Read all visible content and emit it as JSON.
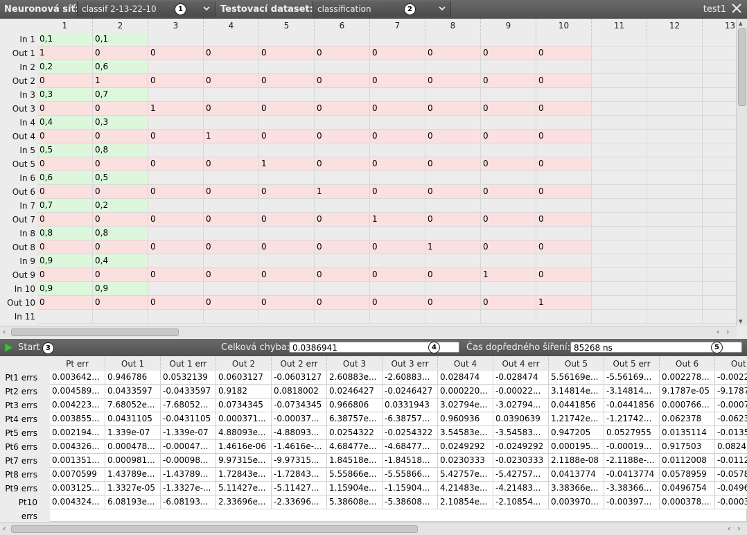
{
  "topbar": {
    "network_label": "Neuronová síť:",
    "network_value": "classif 2-13-22-10",
    "network_badge": "1",
    "dataset_label": "Testovací dataset:",
    "dataset_value": "classification",
    "dataset_badge": "2",
    "window_name": "test1"
  },
  "grid": {
    "columns": [
      "1",
      "2",
      "3",
      "4",
      "5",
      "6",
      "7",
      "8",
      "9",
      "10",
      "11",
      "12",
      "13"
    ],
    "rows": [
      {
        "label": "In 1",
        "type": "in",
        "cells": [
          "0,1",
          "0,1"
        ]
      },
      {
        "label": "Out 1",
        "type": "out",
        "cells": [
          "1",
          "0",
          "0",
          "0",
          "0",
          "0",
          "0",
          "0",
          "0",
          "0"
        ]
      },
      {
        "label": "In 2",
        "type": "in",
        "cells": [
          "0,2",
          "0,6"
        ]
      },
      {
        "label": "Out 2",
        "type": "out",
        "cells": [
          "0",
          "1",
          "0",
          "0",
          "0",
          "0",
          "0",
          "0",
          "0",
          "0"
        ]
      },
      {
        "label": "In 3",
        "type": "in",
        "cells": [
          "0,3",
          "0,7"
        ]
      },
      {
        "label": "Out 3",
        "type": "out",
        "cells": [
          "0",
          "0",
          "1",
          "0",
          "0",
          "0",
          "0",
          "0",
          "0",
          "0"
        ]
      },
      {
        "label": "In 4",
        "type": "in",
        "cells": [
          "0,4",
          "0,3"
        ]
      },
      {
        "label": "Out 4",
        "type": "out",
        "cells": [
          "0",
          "0",
          "0",
          "1",
          "0",
          "0",
          "0",
          "0",
          "0",
          "0"
        ]
      },
      {
        "label": "In 5",
        "type": "in",
        "cells": [
          "0,5",
          "0,8"
        ]
      },
      {
        "label": "Out 5",
        "type": "out",
        "cells": [
          "0",
          "0",
          "0",
          "0",
          "1",
          "0",
          "0",
          "0",
          "0",
          "0"
        ]
      },
      {
        "label": "In 6",
        "type": "in",
        "cells": [
          "0,6",
          "0,5"
        ]
      },
      {
        "label": "Out 6",
        "type": "out",
        "cells": [
          "0",
          "0",
          "0",
          "0",
          "0",
          "1",
          "0",
          "0",
          "0",
          "0"
        ]
      },
      {
        "label": "In 7",
        "type": "in",
        "cells": [
          "0,7",
          "0,2"
        ]
      },
      {
        "label": "Out 7",
        "type": "out",
        "cells": [
          "0",
          "0",
          "0",
          "0",
          "0",
          "0",
          "1",
          "0",
          "0",
          "0"
        ]
      },
      {
        "label": "In 8",
        "type": "in",
        "cells": [
          "0,8",
          "0,8"
        ]
      },
      {
        "label": "Out 8",
        "type": "out",
        "cells": [
          "0",
          "0",
          "0",
          "0",
          "0",
          "0",
          "0",
          "1",
          "0",
          "0"
        ]
      },
      {
        "label": "In 9",
        "type": "in",
        "cells": [
          "0,9",
          "0,4"
        ]
      },
      {
        "label": "Out 9",
        "type": "out",
        "cells": [
          "0",
          "0",
          "0",
          "0",
          "0",
          "0",
          "0",
          "0",
          "1",
          "0"
        ]
      },
      {
        "label": "In 10",
        "type": "in",
        "cells": [
          "0,9",
          "0,9"
        ]
      },
      {
        "label": "Out 10",
        "type": "out",
        "cells": [
          "0",
          "0",
          "0",
          "0",
          "0",
          "0",
          "0",
          "0",
          "0",
          "1"
        ]
      },
      {
        "label": "In 11",
        "type": "empty",
        "cells": []
      }
    ]
  },
  "runbar": {
    "start_label": "Start",
    "start_badge": "3",
    "error_label": "Celková chyba:",
    "error_value": "0.0386941",
    "error_badge": "4",
    "time_label": "Čas dopředného šíření:",
    "time_value": "85268 ns",
    "time_badge": "5"
  },
  "errors": {
    "columns": [
      "Pt err",
      "Out 1",
      "Out 1 err",
      "Out 2",
      "Out 2 err",
      "Out 3",
      "Out 3 err",
      "Out 4",
      "Out 4 err",
      "Out 5",
      "Out 5 err",
      "Out 6",
      "Out 6"
    ],
    "rows": [
      {
        "label": "Pt1 errs",
        "cells": [
          "0.003642...",
          "0.946786",
          "0.0532139",
          "0.0603127",
          "-0.0603127",
          "2.60883e...",
          "-2.60883...",
          "0.028474",
          "-0.028474",
          "5.56169e...",
          "-5.56169...",
          "0.002278...",
          "-0.0022"
        ]
      },
      {
        "label": "Pt2 errs",
        "cells": [
          "0.004589...",
          "0.0433597",
          "-0.0433597",
          "0.9182",
          "0.0818002",
          "0.0246427",
          "-0.0246427",
          "0.000220...",
          "-0.00022...",
          "3.14814e...",
          "-3.14814...",
          "9.1787e-05",
          "-9.1787"
        ]
      },
      {
        "label": "Pt3 errs",
        "cells": [
          "0.004223...",
          "7.68052e...",
          "-7.68052...",
          "0.0734345",
          "-0.0734345",
          "0.966806",
          "0.0331943",
          "3.02794e...",
          "-3.02794...",
          "0.0441856",
          "-0.0441856",
          "0.000766...",
          "-0.0007"
        ]
      },
      {
        "label": "Pt4 errs",
        "cells": [
          "0.003855...",
          "0.0431105",
          "-0.0431105",
          "0.000371...",
          "-0.00037...",
          "6.38757e...",
          "-6.38757...",
          "0.960936",
          "0.0390639",
          "1.21742e...",
          "-1.21742...",
          "0.062378",
          "-0.0623"
        ]
      },
      {
        "label": "Pt5 errs",
        "cells": [
          "0.002194...",
          "1.339e-07",
          "-1.339e-07",
          "4.88093e...",
          "-4.88093...",
          "0.0254322",
          "-0.0254322",
          "3.54583e...",
          "-3.54583...",
          "0.947205",
          "0.0527955",
          "0.0135114",
          "-0.0135"
        ]
      },
      {
        "label": "Pt6 errs",
        "cells": [
          "0.004326...",
          "0.000478...",
          "-0.00047...",
          "1.4616e-06",
          "-1.4616e-...",
          "4.68477e...",
          "-4.68477...",
          "0.0249292",
          "-0.0249292",
          "0.000195...",
          "-0.00019...",
          "0.917503",
          "0.0824"
        ]
      },
      {
        "label": "Pt7 errs",
        "cells": [
          "0.001351...",
          "0.000981...",
          "-0.00098...",
          "9.97315e...",
          "-9.97315...",
          "1.84518e...",
          "-1.84518...",
          "0.0230333",
          "-0.0230333",
          "2.1188e-08",
          "-2.1188e-...",
          "0.0112008",
          "-0.0112"
        ]
      },
      {
        "label": "Pt8 errs",
        "cells": [
          "0.0070599",
          "1.43789e...",
          "-1.43789...",
          "1.72843e...",
          "-1.72843...",
          "5.55866e...",
          "-5.55866...",
          "5.42757e...",
          "-5.42757...",
          "0.0413774",
          "-0.0413774",
          "0.0578959",
          "-0.0578"
        ]
      },
      {
        "label": "Pt9 errs",
        "cells": [
          "0.003125...",
          "1.3327e-05",
          "-1.3327e-...",
          "5.11427e...",
          "-5.11427...",
          "1.15904e...",
          "-1.15904...",
          "4.21483e...",
          "-4.21483...",
          "3.38366e...",
          "-3.38366...",
          "0.0496754",
          "-0.0496"
        ]
      },
      {
        "label": "Pt10 errs",
        "cells": [
          "0.004324...",
          "6.08193e...",
          "-6.08193...",
          "2.33696e...",
          "-2.33696...",
          "5.38608e...",
          "-5.38608...",
          "2.10854e...",
          "-2.10854...",
          "0.003970...",
          "-0.00397...",
          "0.000378...",
          "-0.0003"
        ]
      }
    ]
  },
  "colors": {
    "in_cell": "#dcf7dc",
    "out_cell": "#fbe0e0",
    "bar": "#5a5a5a"
  }
}
